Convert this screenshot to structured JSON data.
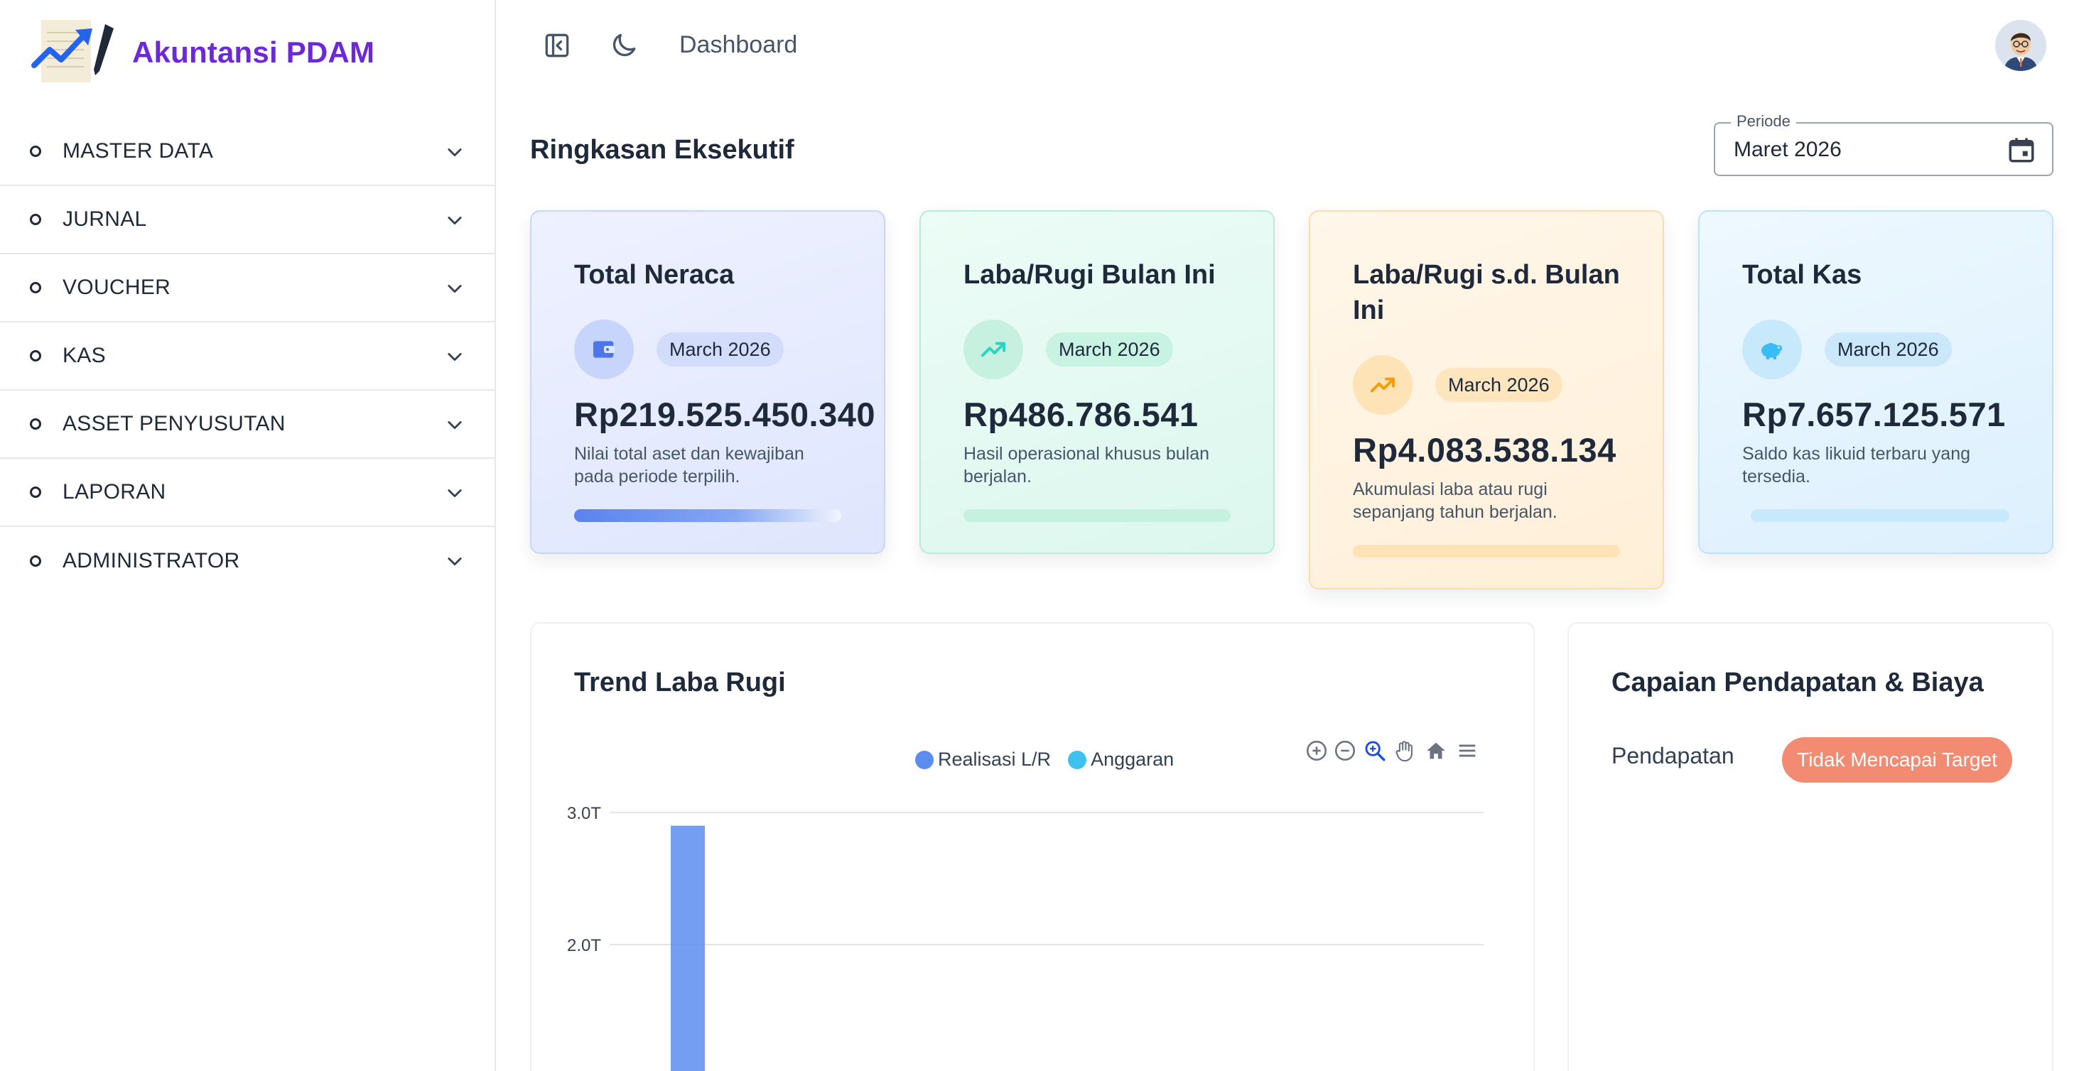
{
  "app": {
    "title": "Akuntansi PDAM"
  },
  "sidebar": {
    "items": [
      {
        "label": "MASTER DATA"
      },
      {
        "label": "JURNAL"
      },
      {
        "label": "VOUCHER"
      },
      {
        "label": "KAS"
      },
      {
        "label": "ASSET PENYUSUTAN"
      },
      {
        "label": "LAPORAN"
      },
      {
        "label": "ADMINISTRATOR"
      }
    ]
  },
  "topbar": {
    "page_title": "Dashboard"
  },
  "summary": {
    "title": "Ringkasan Eksekutif",
    "periode_label": "Periode",
    "periode_value": "Maret 2026"
  },
  "cards": [
    {
      "title": "Total Neraca",
      "badge": "March 2026",
      "value": "Rp219.525.450.340",
      "desc": "Nilai total aset dan kewajiban pada periode terpilih.",
      "icon": "wallet-icon",
      "accent": "#6d8ff0",
      "bar_fill": 1.0
    },
    {
      "title": "Laba/Rugi Bulan Ini",
      "badge": "March 2026",
      "value": "Rp486.786.541",
      "desc": "Hasil operasional khusus bulan berjalan.",
      "icon": "trending-up-icon",
      "accent": "#34d399",
      "bar_fill": 0.0
    },
    {
      "title": "Laba/Rugi s.d. Bulan Ini",
      "badge": "March 2026",
      "value": "Rp4.083.538.134",
      "desc": "Akumulasi laba atau rugi sepanjang tahun berjalan.",
      "icon": "trending-up-icon",
      "accent": "#f59e0b",
      "bar_fill": 0.0
    },
    {
      "title": "Total Kas",
      "badge": "March 2026",
      "value": "Rp7.657.125.571",
      "desc": "Saldo kas likuid terbaru yang tersedia.",
      "icon": "piggy-bank-icon",
      "accent": "#38bdf8",
      "bar_fill": 0.0
    }
  ],
  "trend_panel": {
    "title": "Trend Laba Rugi",
    "legend": [
      {
        "label": "Realisasi L/R",
        "color": "#5b8def"
      },
      {
        "label": "Anggaran",
        "color": "#3fc1f0"
      }
    ]
  },
  "chart_data": {
    "type": "bar",
    "title": "Trend Laba Rugi",
    "series": [
      {
        "name": "Realisasi L/R",
        "values": [
          2.9
        ]
      },
      {
        "name": "Anggaran",
        "values": []
      }
    ],
    "y_tick_labels": [
      "3.0T",
      "2.0T"
    ],
    "y_ticks": [
      3.0,
      2.0
    ],
    "ylim_visible": [
      1.0,
      3.0
    ],
    "grid": true,
    "legend_position": "top-center"
  },
  "capaian_panel": {
    "title": "Capaian Pendapatan & Biaya",
    "row_label": "Pendapatan",
    "status": "Tidak Mencapai Target"
  }
}
